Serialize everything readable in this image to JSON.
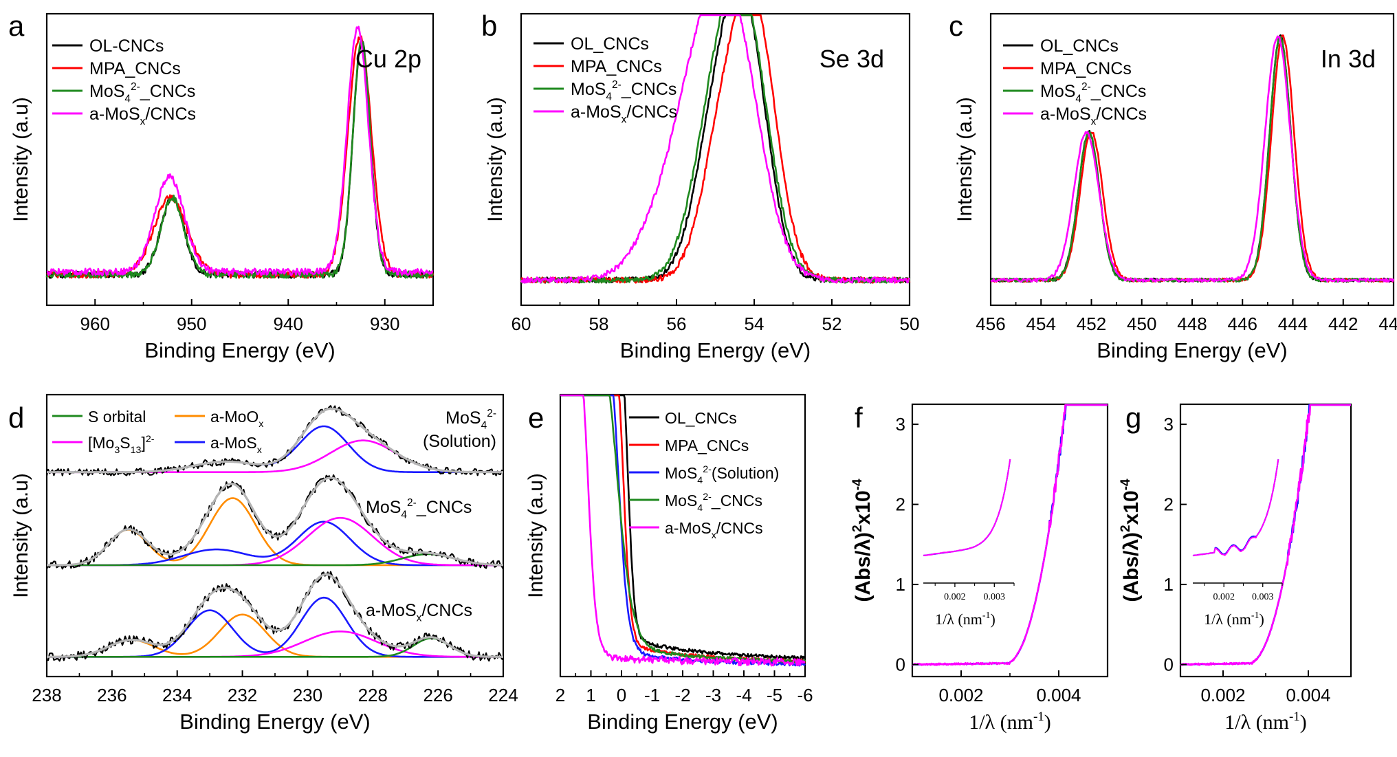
{
  "panel_letters": [
    "a",
    "b",
    "c",
    "d",
    "e",
    "f",
    "g"
  ],
  "colors": {
    "black": "#000000",
    "red": "#ff0000",
    "green": "#1f8a1f",
    "magenta": "#ff00ff",
    "blue": "#1a1aff",
    "orange": "#ff8c00",
    "grey": "#b5b5b5"
  },
  "chart_data": [
    {
      "id": "a",
      "type": "line",
      "title": "Cu 2p",
      "xlabel": "Binding Energy (eV)",
      "ylabel": "Intensity (a.u)",
      "xlim": [
        965,
        925
      ],
      "ylim": [
        0,
        1
      ],
      "xticks": [
        "960",
        "950",
        "940",
        "930"
      ],
      "legend": [
        "OL-CNCs",
        "MPA_CNCs",
        "MoS4 2- _CNCs",
        "a-MoSx/CNCs"
      ],
      "legend_placement": "top-left",
      "series": [
        {
          "name": "OL-CNCs",
          "color": "black",
          "bg": 0.08,
          "peaks": [
            [
              952,
              0.36,
              1.2
            ],
            [
              932.4,
              0.93,
              0.9
            ]
          ]
        },
        {
          "name": "MPA_CNCs",
          "color": "red",
          "bg": 0.08,
          "peaks": [
            [
              952.2,
              0.36,
              1.7
            ],
            [
              932.6,
              0.95,
              1.2
            ]
          ]
        },
        {
          "name": "MoS4 2- _CNCs",
          "color": "green",
          "bg": 0.08,
          "peaks": [
            [
              952,
              0.36,
              1.2
            ],
            [
              932.4,
              0.93,
              0.9
            ]
          ]
        },
        {
          "name": "a-MoSx/CNCs",
          "color": "magenta",
          "bg": 0.09,
          "peaks": [
            [
              952.3,
              0.44,
              1.5
            ],
            [
              932.8,
              0.98,
              1.1
            ]
          ]
        }
      ]
    },
    {
      "id": "b",
      "type": "line",
      "title": "Se 3d",
      "xlabel": "Binding Energy (eV)",
      "ylabel": "Intensity (a.u)",
      "xlim": [
        60,
        50
      ],
      "ylim": [
        0,
        1
      ],
      "xticks": [
        "60",
        "58",
        "56",
        "54",
        "52",
        "50"
      ],
      "legend": [
        "OL_CNCs",
        "MPA_CNCs",
        "MoS4 2- _CNCs",
        "a-MoSx/CNCs"
      ],
      "legend_placement": "top-left",
      "series": [
        {
          "name": "OL_CNCs",
          "color": "black",
          "bg": 0.06,
          "peaks": [
            [
              54.2,
              0.93,
              0.55
            ],
            [
              55.0,
              0.55,
              0.55
            ]
          ]
        },
        {
          "name": "MPA_CNCs",
          "color": "red",
          "bg": 0.06,
          "peaks": [
            [
              53.95,
              0.94,
              0.55
            ],
            [
              54.8,
              0.55,
              0.55
            ]
          ]
        },
        {
          "name": "MoS4 2- _CNCs",
          "color": "green",
          "bg": 0.06,
          "peaks": [
            [
              54.2,
              0.9,
              0.6
            ],
            [
              55.0,
              0.58,
              0.6
            ]
          ]
        },
        {
          "name": "a-MoSx/CNCs",
          "color": "magenta",
          "bg": 0.06,
          "peaks": [
            [
              54.5,
              0.85,
              0.7
            ],
            [
              55.4,
              0.62,
              0.7
            ],
            [
              56.4,
              0.22,
              0.7
            ]
          ]
        }
      ]
    },
    {
      "id": "c",
      "type": "line",
      "title": "In 3d",
      "xlabel": "Binding Energy (eV)",
      "ylabel": "Intensity (a.u)",
      "xlim": [
        456,
        440
      ],
      "ylim": [
        0,
        1
      ],
      "xticks": [
        "456",
        "454",
        "452",
        "450",
        "448",
        "446",
        "444",
        "442",
        "440"
      ],
      "legend": [
        "OL_CNCs",
        "MPA_CNCs",
        "MoS4 2- _CNCs",
        "a-MoSx/CNCs"
      ],
      "legend_placement": "top-left",
      "series": [
        {
          "name": "OL_CNCs",
          "color": "black",
          "bg": 0.06,
          "peaks": [
            [
              452.1,
              0.6,
              0.42
            ],
            [
              444.5,
              0.95,
              0.42
            ]
          ]
        },
        {
          "name": "MPA_CNCs",
          "color": "red",
          "bg": 0.06,
          "peaks": [
            [
              452.0,
              0.6,
              0.45
            ],
            [
              444.4,
              0.95,
              0.45
            ]
          ]
        },
        {
          "name": "MoS4 2- _CNCs",
          "color": "green",
          "bg": 0.06,
          "peaks": [
            [
              452.1,
              0.6,
              0.42
            ],
            [
              444.5,
              0.95,
              0.42
            ]
          ]
        },
        {
          "name": "a-MoSx/CNCs",
          "color": "magenta",
          "bg": 0.06,
          "peaks": [
            [
              452.2,
              0.6,
              0.5
            ],
            [
              444.6,
              0.95,
              0.5
            ]
          ]
        }
      ]
    },
    {
      "id": "d",
      "type": "line",
      "xlabel": "Binding Energy (eV)",
      "ylabel": "Intensity (a.u)",
      "xlim": [
        238,
        224
      ],
      "ylim": [
        0,
        1
      ],
      "xticks": [
        "238",
        "236",
        "234",
        "232",
        "230",
        "228",
        "226",
        "224"
      ],
      "legend": [
        "S orbital",
        "a-MoOx",
        "[Mo3S13]2-",
        "a-MoSx"
      ],
      "legend_placement": "top-left",
      "stack_labels": [
        "MoS4 2-",
        "(Solution)",
        "MoS4 2- _CNCs",
        "a-MoSx/CNCs"
      ],
      "stacks": [
        {
          "offset": 0.725,
          "scale": 0.25,
          "components": [
            {
              "name": "a-MoSx",
              "color": "blue",
              "peaks": [
                [
                  229.5,
                  0.65,
                  0.75
                ],
                [
                  232.5,
                  0.15,
                  1.0
                ]
              ]
            },
            {
              "name": "[Mo3S13]2-",
              "color": "magenta",
              "peaks": [
                [
                  228.3,
                  0.45,
                  1.0
                ]
              ]
            }
          ]
        },
        {
          "offset": 0.395,
          "scale": 0.28,
          "components": [
            {
              "name": "a-MoOx",
              "color": "orange",
              "peaks": [
                [
                  235.5,
                  0.45,
                  0.6
                ],
                [
                  232.3,
                  0.85,
                  0.7
                ]
              ]
            },
            {
              "name": "a-MoSx",
              "color": "blue",
              "peaks": [
                [
                  229.5,
                  0.55,
                  0.8
                ],
                [
                  232.8,
                  0.2,
                  1.0
                ]
              ]
            },
            {
              "name": "[Mo3S13]2-",
              "color": "magenta",
              "peaks": [
                [
                  229.0,
                  0.6,
                  1.0
                ]
              ]
            },
            {
              "name": "S orbital",
              "color": "green",
              "peaks": [
                [
                  226.3,
                  0.14,
                  0.8
                ]
              ]
            }
          ]
        },
        {
          "offset": 0.07,
          "scale": 0.3,
          "components": [
            {
              "name": "a-MoOx",
              "color": "orange",
              "peaks": [
                [
                  235.4,
                  0.2,
                  0.7
                ],
                [
                  232.0,
                  0.5,
                  0.7
                ]
              ]
            },
            {
              "name": "a-MoSx",
              "color": "blue",
              "peaks": [
                [
                  229.5,
                  0.7,
                  0.7
                ],
                [
                  233.0,
                  0.55,
                  0.7
                ]
              ]
            },
            {
              "name": "[Mo3S13]2-",
              "color": "magenta",
              "peaks": [
                [
                  229.0,
                  0.3,
                  1.1
                ]
              ]
            },
            {
              "name": "S orbital",
              "color": "green",
              "peaks": [
                [
                  226.2,
                  0.22,
                  0.55
                ]
              ]
            }
          ]
        }
      ]
    },
    {
      "id": "e",
      "type": "line",
      "xlabel": "Binding Energy (eV)",
      "ylabel": "Intensity (a.u)",
      "xlim": [
        2,
        -6
      ],
      "ylim": [
        0,
        1
      ],
      "xticks": [
        "2",
        "1",
        "0",
        "-1",
        "-2",
        "-3",
        "-4",
        "-5",
        "-6"
      ],
      "legend": [
        "OL_CNCs",
        "MPA_CNCs",
        "MoS4 2- (Solution)",
        "MoS4 2- _CNCs",
        "a-MoSx/CNCs"
      ],
      "legend_placement": "top-right",
      "series": [
        {
          "name": "OL_CNCs",
          "color": "black",
          "x0": -0.2,
          "w": 0.25,
          "base": 0.04,
          "tail": 0.06
        },
        {
          "name": "MPA_CNCs",
          "color": "red",
          "x0": -0.05,
          "w": 0.28,
          "base": 0.03,
          "tail": 0.05
        },
        {
          "name": "MoS4 2- (Solution)",
          "color": "blue",
          "x0": 0.1,
          "w": 0.35,
          "base": 0.02,
          "tail": 0.04
        },
        {
          "name": "MoS4 2- _CNCs",
          "color": "green",
          "x0": 0.15,
          "w": 0.55,
          "base": 0.03,
          "tail": 0.05
        },
        {
          "name": "a-MoSx/CNCs",
          "color": "magenta",
          "x0": 1.1,
          "w": 0.3,
          "base": 0.03,
          "tail": 0.02
        }
      ]
    },
    {
      "id": "f",
      "type": "line",
      "xlabel": "1/λ (nm-1)",
      "ylabel": "(Abs/λ)2x10-4",
      "xlim": [
        0.001,
        0.005
      ],
      "ylim": [
        -0.15,
        3.25
      ],
      "xticks": [
        "0.002",
        "0.004"
      ],
      "yticks": [
        "0",
        "1",
        "2",
        "3"
      ],
      "series": [
        {
          "name": "",
          "color": "blue",
          "knee": 0.0034,
          "slope": 2450
        },
        {
          "name": "",
          "color": "magenta",
          "knee": 0.0034,
          "slope": 2450
        }
      ],
      "inset": {
        "xlabel": "1/λ (nm-1)",
        "xticks": [
          "0.002",
          "0.003"
        ]
      }
    },
    {
      "id": "g",
      "type": "line",
      "xlabel": "1/λ (nm-1)",
      "ylabel": "(Abs/λ)2x10-4",
      "xlim": [
        0.001,
        0.005
      ],
      "ylim": [
        -0.15,
        3.25
      ],
      "xticks": [
        "0.002",
        "0.004"
      ],
      "yticks": [
        "0",
        "1",
        "2",
        "3"
      ],
      "series": [
        {
          "name": "",
          "color": "blue",
          "knee": 0.0031,
          "slope": 1750
        },
        {
          "name": "",
          "color": "magenta",
          "knee": 0.0031,
          "slope": 1750
        }
      ],
      "inset": {
        "xlabel": "1/λ (nm-1)",
        "xticks": [
          "0.002",
          "0.003"
        ]
      }
    }
  ]
}
